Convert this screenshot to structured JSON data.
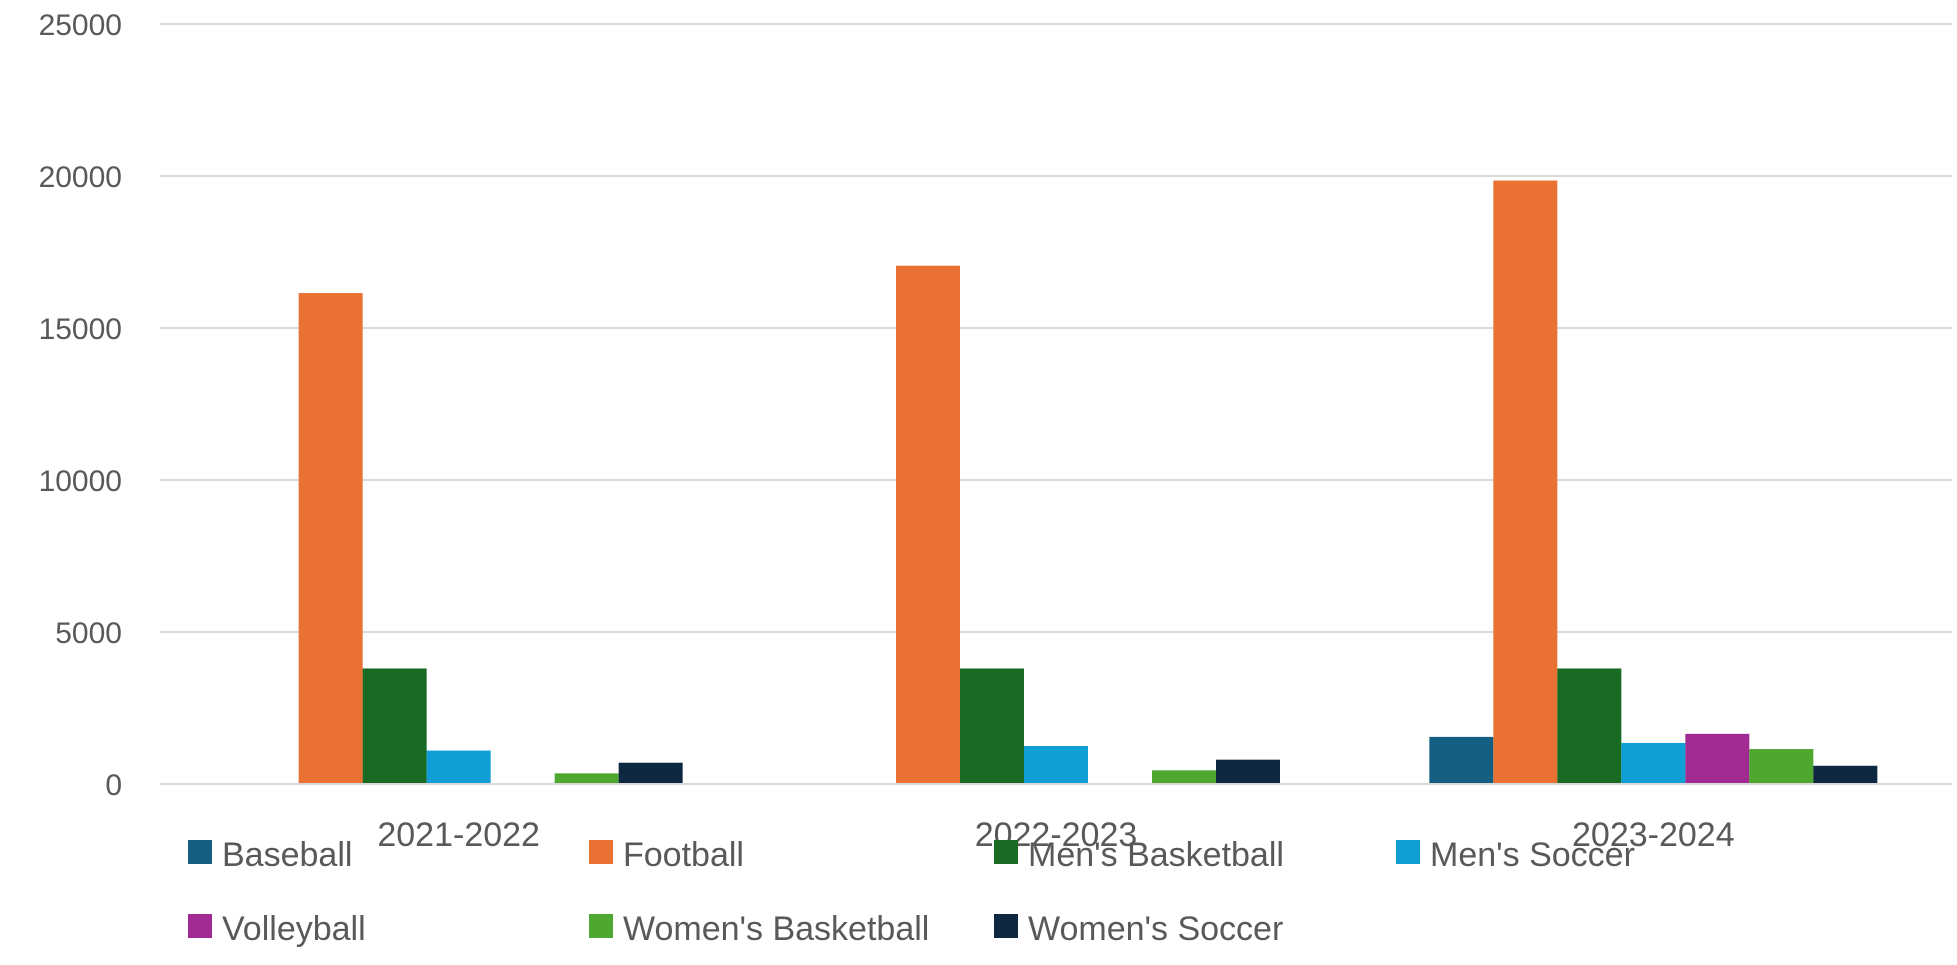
{
  "chart_data": {
    "type": "bar",
    "categories": [
      "2021-2022",
      "2022-2023",
      "2023-2024"
    ],
    "series": [
      {
        "name": "Baseball",
        "color": "#156082",
        "values": [
          0,
          0,
          1550
        ]
      },
      {
        "name": "Football",
        "color": "#E97132",
        "values": [
          16150,
          17050,
          19850
        ]
      },
      {
        "name": "Men's Basketball",
        "color": "#196B24",
        "values": [
          3800,
          3800,
          3800
        ]
      },
      {
        "name": "Men's Soccer",
        "color": "#0F9ED5",
        "values": [
          1100,
          1250,
          1350
        ]
      },
      {
        "name": "Volleyball",
        "color": "#A02B93",
        "values": [
          0,
          0,
          1650
        ]
      },
      {
        "name": "Women's Basketball",
        "color": "#4EA72E",
        "values": [
          350,
          450,
          1150
        ]
      },
      {
        "name": "Women's Soccer",
        "color": "#0E2841",
        "values": [
          700,
          800,
          600
        ]
      }
    ],
    "title": "",
    "xlabel": "",
    "ylabel": "",
    "ylim": [
      0,
      25000
    ],
    "yticks": [
      0,
      5000,
      10000,
      15000,
      20000,
      25000
    ],
    "grid": true,
    "legend_position": "bottom"
  }
}
